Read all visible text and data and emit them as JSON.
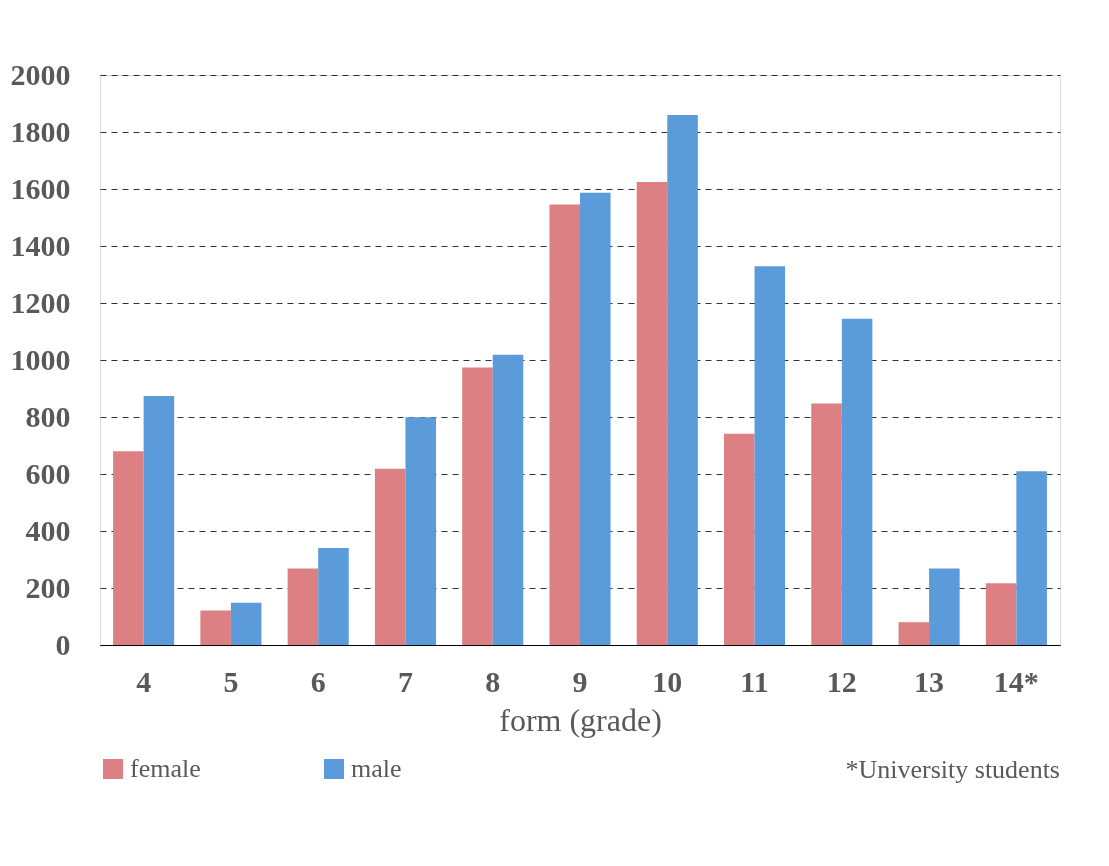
{
  "chart_data": {
    "type": "bar",
    "xlabel": "form (grade)",
    "categories": [
      "4",
      "5",
      "6",
      "7",
      "8",
      "9",
      "10",
      "11",
      "12",
      "13",
      "14*"
    ],
    "series": [
      {
        "name": "female",
        "color": "#dc8083",
        "values": [
          680,
          121,
          268,
          618,
          974,
          1546,
          1625,
          741,
          847,
          80,
          217
        ]
      },
      {
        "name": "male",
        "color": "#5b9bd9",
        "values": [
          874,
          148,
          340,
          799,
          1018,
          1587,
          1860,
          1329,
          1145,
          268,
          610
        ]
      }
    ],
    "ylim": [
      0,
      2000
    ],
    "yticks": [
      0,
      200,
      400,
      600,
      800,
      1000,
      1200,
      1400,
      1600,
      1800,
      2000
    ],
    "grid": "y",
    "legend": "bottom",
    "annotations": [
      "*University students"
    ]
  }
}
